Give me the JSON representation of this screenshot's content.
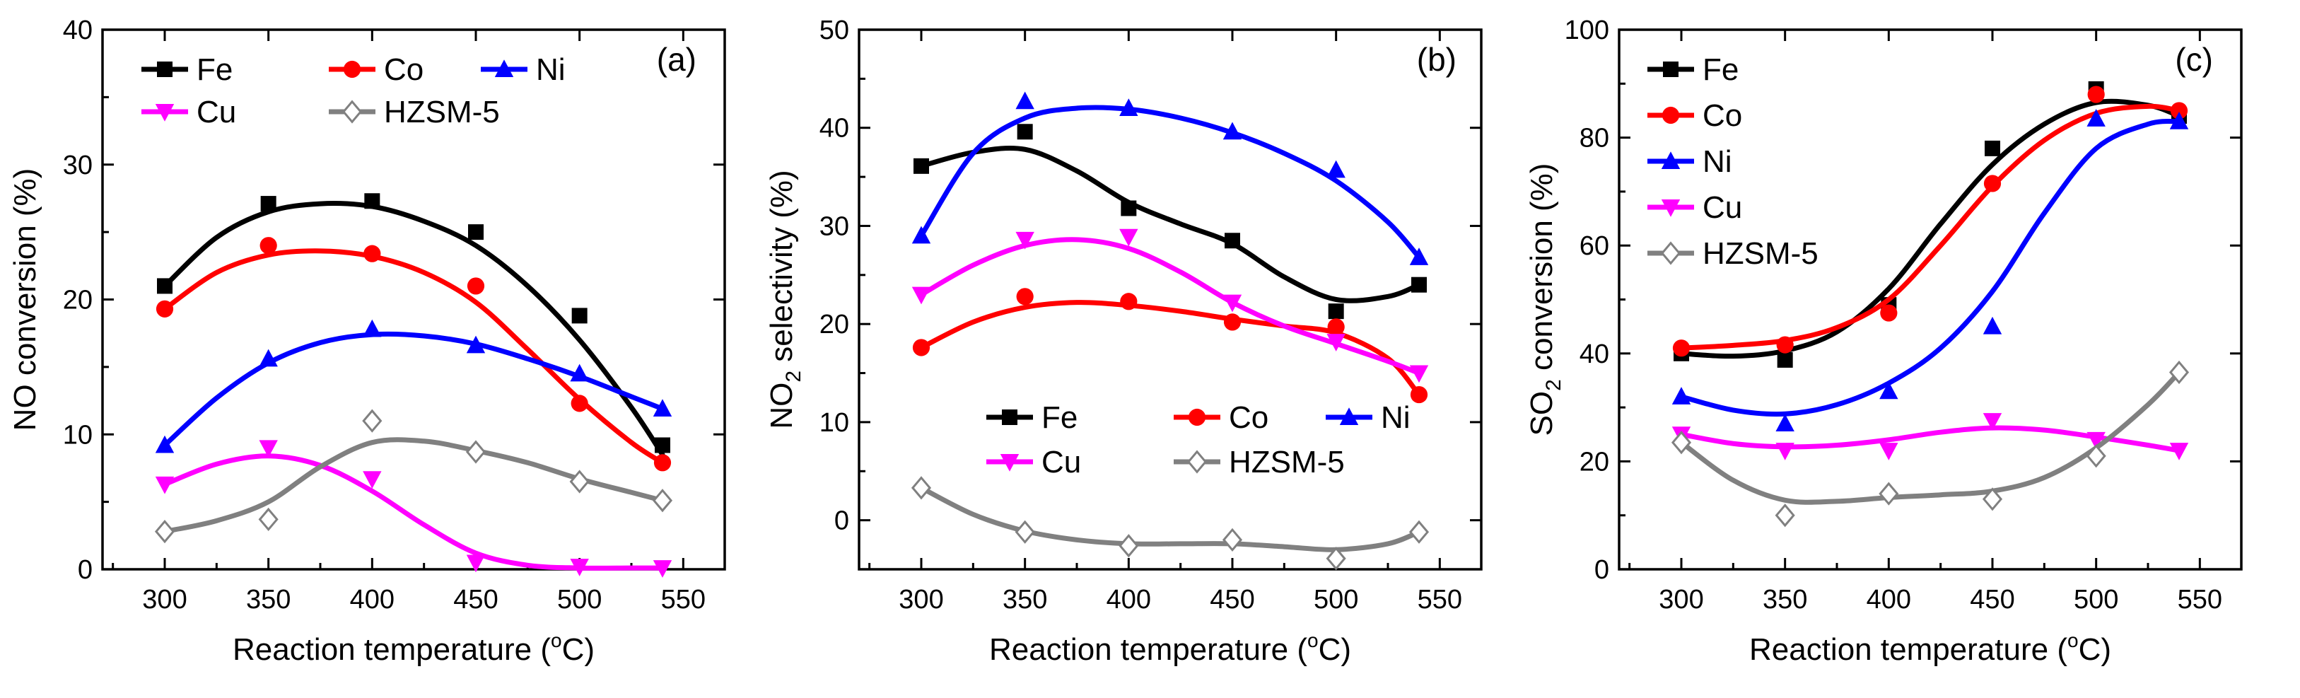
{
  "chart_data": [
    {
      "type": "line",
      "panel_label": "(a)",
      "xlabel": "Reaction temperature",
      "xlabel_unit_sup": "o",
      "xlabel_unit_after": "C)",
      "ylabel": "NO conversion (%)",
      "ylabel_sub": "",
      "ylabel_after": "",
      "xlim": [
        270,
        570
      ],
      "ylim": [
        0,
        40
      ],
      "xticks": [
        300,
        350,
        400,
        450,
        500,
        550
      ],
      "yticks": [
        0,
        10,
        20,
        30,
        40
      ],
      "series": [
        {
          "name": "Fe",
          "marker": "square",
          "color": "#000000",
          "x": [
            300,
            350,
            400,
            450,
            500,
            540
          ],
          "y": [
            21.0,
            27.1,
            27.3,
            25.0,
            18.8,
            9.2
          ],
          "smooth_x": [
            300,
            325,
            350,
            375,
            400,
            425,
            450,
            475,
            500,
            525,
            540
          ],
          "smooth_y": [
            21.0,
            24.6,
            26.5,
            27.1,
            26.9,
            25.8,
            24.0,
            21.0,
            17.0,
            12.0,
            8.5
          ]
        },
        {
          "name": "Co",
          "marker": "circle",
          "color": "#ff0000",
          "x": [
            300,
            350,
            400,
            450,
            500,
            540
          ],
          "y": [
            19.3,
            24.0,
            23.4,
            21.0,
            12.3,
            7.9
          ],
          "smooth_x": [
            300,
            325,
            350,
            375,
            400,
            425,
            450,
            475,
            500,
            525,
            540
          ],
          "smooth_y": [
            19.3,
            22.0,
            23.3,
            23.6,
            23.2,
            22.0,
            19.8,
            16.3,
            12.6,
            9.4,
            7.9
          ]
        },
        {
          "name": "Ni",
          "marker": "triangle-up",
          "color": "#0000ff",
          "x": [
            300,
            350,
            400,
            450,
            500,
            540
          ],
          "y": [
            9.2,
            15.6,
            17.8,
            16.6,
            14.5,
            11.9
          ],
          "smooth_x": [
            300,
            325,
            350,
            375,
            400,
            425,
            450,
            475,
            500,
            525,
            540
          ],
          "smooth_y": [
            9.2,
            12.7,
            15.3,
            16.8,
            17.4,
            17.3,
            16.7,
            15.6,
            14.3,
            12.8,
            11.9
          ]
        },
        {
          "name": "Cu",
          "marker": "triangle-down",
          "color": "#ff00ff",
          "x": [
            300,
            350,
            400,
            450,
            500,
            540
          ],
          "y": [
            6.3,
            9.0,
            6.7,
            0.5,
            0.2,
            0.1
          ],
          "smooth_x": [
            300,
            325,
            350,
            375,
            400,
            425,
            450,
            475,
            500,
            525,
            540
          ],
          "smooth_y": [
            6.3,
            7.8,
            8.4,
            7.7,
            5.8,
            3.3,
            1.2,
            0.3,
            0.1,
            0.1,
            0.1
          ]
        },
        {
          "name": "HZSM-5",
          "marker": "diamond-open",
          "color": "#808080",
          "x": [
            300,
            350,
            400,
            450,
            500,
            540
          ],
          "y": [
            2.8,
            3.7,
            11.0,
            8.7,
            6.5,
            5.1
          ],
          "smooth_x": [
            300,
            325,
            350,
            375,
            400,
            425,
            450,
            475,
            500,
            525,
            540
          ],
          "smooth_y": [
            2.8,
            3.6,
            5.0,
            7.6,
            9.4,
            9.5,
            8.8,
            7.9,
            6.7,
            5.7,
            5.1
          ]
        }
      ],
      "legend_rows": [
        [
          "Fe",
          "Co",
          "Ni"
        ],
        [
          "Cu",
          "HZSM-5"
        ]
      ],
      "legend_position": "top-left"
    },
    {
      "type": "line",
      "panel_label": "(b)",
      "xlabel": "Reaction temperature",
      "xlabel_unit_sup": "o",
      "xlabel_unit_after": "C)",
      "ylabel": "NO",
      "ylabel_sub": "2",
      "ylabel_after": " selectivity (%)",
      "xlim": [
        270,
        570
      ],
      "ylim": [
        -5,
        50
      ],
      "xticks": [
        300,
        350,
        400,
        450,
        500,
        550
      ],
      "yticks": [
        0,
        10,
        20,
        30,
        40,
        50
      ],
      "series": [
        {
          "name": "Fe",
          "marker": "square",
          "color": "#000000",
          "x": [
            300,
            350,
            400,
            450,
            500,
            540
          ],
          "y": [
            36.1,
            39.6,
            31.8,
            28.5,
            21.3,
            24.0
          ],
          "smooth_x": [
            300,
            325,
            350,
            375,
            400,
            425,
            450,
            475,
            500,
            525,
            540
          ],
          "smooth_y": [
            36.1,
            37.5,
            37.8,
            35.6,
            32.4,
            30.2,
            28.2,
            24.8,
            22.5,
            22.8,
            24.0
          ]
        },
        {
          "name": "Co",
          "marker": "circle",
          "color": "#ff0000",
          "x": [
            300,
            350,
            400,
            450,
            500,
            540
          ],
          "y": [
            17.6,
            22.8,
            22.3,
            20.2,
            19.7,
            12.8
          ],
          "smooth_x": [
            300,
            325,
            350,
            375,
            400,
            425,
            450,
            475,
            500,
            525,
            540
          ],
          "smooth_y": [
            17.6,
            20.2,
            21.7,
            22.2,
            21.9,
            21.3,
            20.5,
            19.8,
            19.1,
            16.5,
            12.8
          ]
        },
        {
          "name": "Ni",
          "marker": "triangle-up",
          "color": "#0000ff",
          "x": [
            300,
            350,
            400,
            450,
            500,
            540
          ],
          "y": [
            29.0,
            42.7,
            42.0,
            39.6,
            35.7,
            26.8
          ],
          "smooth_x": [
            300,
            325,
            350,
            375,
            400,
            425,
            450,
            475,
            500,
            525,
            540
          ],
          "smooth_y": [
            29.0,
            37.4,
            41.0,
            42.0,
            41.9,
            41.0,
            39.5,
            37.4,
            34.6,
            30.4,
            26.8
          ]
        },
        {
          "name": "Cu",
          "marker": "triangle-down",
          "color": "#ff00ff",
          "x": [
            300,
            350,
            400,
            450,
            500,
            540
          ],
          "y": [
            23.0,
            28.6,
            28.9,
            22.2,
            18.2,
            15.0
          ],
          "smooth_x": [
            300,
            325,
            350,
            375,
            400,
            425,
            450,
            475,
            500,
            525,
            540
          ],
          "smooth_y": [
            23.0,
            26.0,
            28.0,
            28.6,
            27.7,
            25.3,
            22.2,
            19.8,
            18.0,
            16.2,
            15.0
          ]
        },
        {
          "name": "HZSM-5",
          "marker": "diamond-open",
          "color": "#808080",
          "x": [
            300,
            350,
            400,
            450,
            500,
            540
          ],
          "y": [
            3.3,
            -1.2,
            -2.6,
            -2.0,
            -3.9,
            -1.2
          ],
          "smooth_x": [
            300,
            325,
            350,
            375,
            400,
            425,
            450,
            475,
            500,
            525,
            540
          ],
          "smooth_y": [
            3.3,
            0.6,
            -1.1,
            -2.0,
            -2.4,
            -2.4,
            -2.4,
            -2.7,
            -3.0,
            -2.4,
            -1.2
          ]
        }
      ],
      "legend_rows": [
        [
          "Fe",
          "Co",
          "Ni"
        ],
        [
          "Cu",
          "HZSM-5"
        ]
      ],
      "legend_position": "center-right"
    },
    {
      "type": "line",
      "panel_label": "(c)",
      "xlabel": "Reaction temperature",
      "xlabel_unit_sup": "o",
      "xlabel_unit_after": "C)",
      "ylabel": "SO",
      "ylabel_sub": "2",
      "ylabel_after": " conversion (%)",
      "xlim": [
        270,
        570
      ],
      "ylim": [
        0,
        100
      ],
      "xticks": [
        300,
        350,
        400,
        450,
        500,
        550
      ],
      "yticks": [
        0,
        20,
        40,
        60,
        80,
        100
      ],
      "series": [
        {
          "name": "Fe",
          "marker": "square",
          "color": "#000000",
          "x": [
            300,
            350,
            400,
            450,
            500,
            540
          ],
          "y": [
            40.0,
            38.8,
            49.0,
            78.0,
            89.0,
            84.0
          ],
          "smooth_x": [
            300,
            325,
            350,
            375,
            400,
            425,
            450,
            475,
            500,
            525,
            540
          ],
          "smooth_y": [
            40.0,
            39.5,
            40.5,
            44.0,
            52.0,
            64.0,
            75.0,
            82.5,
            86.5,
            86.0,
            84.0
          ]
        },
        {
          "name": "Co",
          "marker": "circle",
          "color": "#ff0000",
          "x": [
            300,
            350,
            400,
            450,
            500,
            540
          ],
          "y": [
            41.0,
            41.6,
            47.5,
            71.5,
            88.0,
            85.0
          ],
          "smooth_x": [
            300,
            325,
            350,
            375,
            400,
            425,
            450,
            475,
            500,
            525,
            540
          ],
          "smooth_y": [
            41.0,
            41.5,
            42.4,
            44.8,
            50.0,
            60.0,
            71.0,
            79.5,
            84.5,
            85.8,
            85.0
          ]
        },
        {
          "name": "Ni",
          "marker": "triangle-up",
          "color": "#0000ff",
          "x": [
            300,
            350,
            400,
            450,
            500,
            540
          ],
          "y": [
            32.0,
            27.0,
            33.0,
            45.0,
            83.5,
            83.0
          ],
          "smooth_x": [
            300,
            325,
            350,
            375,
            400,
            425,
            450,
            475,
            500,
            525,
            540
          ],
          "smooth_y": [
            32.0,
            29.5,
            28.8,
            30.5,
            34.5,
            41.0,
            51.5,
            66.0,
            78.0,
            82.5,
            83.0
          ]
        },
        {
          "name": "Cu",
          "marker": "triangle-down",
          "color": "#ff00ff",
          "x": [
            300,
            350,
            400,
            450,
            500,
            540
          ],
          "y": [
            25.0,
            22.0,
            22.0,
            27.5,
            24.0,
            22.0
          ],
          "smooth_x": [
            300,
            325,
            350,
            375,
            400,
            425,
            450,
            475,
            500,
            525,
            540
          ],
          "smooth_y": [
            25.0,
            23.3,
            22.7,
            23.0,
            24.0,
            25.4,
            26.2,
            25.8,
            24.5,
            23.0,
            22.0
          ]
        },
        {
          "name": "HZSM-5",
          "marker": "diamond-open",
          "color": "#808080",
          "x": [
            300,
            350,
            400,
            450,
            500,
            540
          ],
          "y": [
            23.5,
            10.0,
            14.0,
            13.0,
            21.0,
            36.5
          ],
          "smooth_x": [
            300,
            325,
            350,
            375,
            400,
            425,
            450,
            475,
            500,
            525,
            540
          ],
          "smooth_y": [
            23.5,
            16.5,
            12.8,
            12.6,
            13.3,
            13.8,
            14.5,
            17.0,
            22.5,
            30.5,
            36.5
          ]
        }
      ],
      "legend_rows": [
        [
          "Fe"
        ],
        [
          "Co"
        ],
        [
          "Ni"
        ],
        [
          "Cu"
        ],
        [
          "HZSM-5"
        ]
      ],
      "legend_position": "top-left"
    }
  ]
}
